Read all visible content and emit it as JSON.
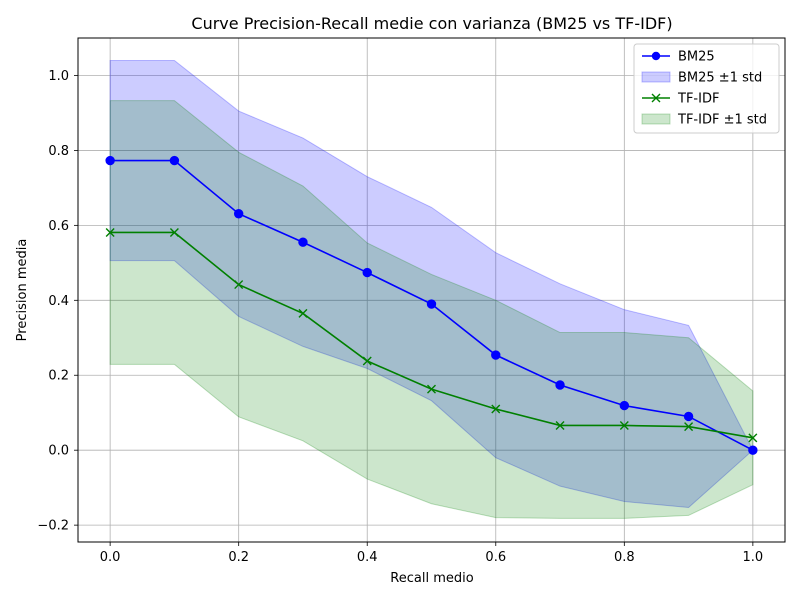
{
  "chart_data": {
    "type": "line",
    "title": "Curve Precision-Recall medie con varianza (BM25 vs TF-IDF)",
    "xlabel": "Recall medio",
    "ylabel": "Precision media",
    "xlim": [
      -0.05,
      1.05
    ],
    "ylim": [
      -0.245,
      1.1
    ],
    "xticks": [
      0.0,
      0.2,
      0.4,
      0.6,
      0.8,
      1.0
    ],
    "xtick_labels": [
      "0.0",
      "0.2",
      "0.4",
      "0.6",
      "0.8",
      "1.0"
    ],
    "yticks": [
      -0.2,
      0.0,
      0.2,
      0.4,
      0.6,
      0.8,
      1.0
    ],
    "ytick_labels": [
      "−0.2",
      "0.0",
      "0.2",
      "0.4",
      "0.6",
      "0.8",
      "1.0"
    ],
    "grid": true,
    "legend_position": "top-right",
    "x": [
      0.0,
      0.1,
      0.2,
      0.3,
      0.4,
      0.5,
      0.6,
      0.7,
      0.8,
      0.9,
      1.0
    ],
    "series": [
      {
        "name": "BM25",
        "color": "#0000ff",
        "marker": "circle",
        "values": [
          0.773,
          0.773,
          0.631,
          0.555,
          0.474,
          0.39,
          0.254,
          0.174,
          0.119,
          0.09,
          0.0
        ],
        "band_upper": [
          1.04,
          1.04,
          0.905,
          0.833,
          0.73,
          0.648,
          0.527,
          0.444,
          0.375,
          0.333,
          0.0
        ],
        "band_lower": [
          0.506,
          0.506,
          0.357,
          0.277,
          0.218,
          0.132,
          -0.02,
          -0.096,
          -0.137,
          -0.153,
          0.0
        ]
      },
      {
        "name": "TF-IDF",
        "color": "#008000",
        "marker": "x",
        "values": [
          0.581,
          0.581,
          0.442,
          0.365,
          0.238,
          0.163,
          0.11,
          0.066,
          0.066,
          0.063,
          0.033
        ],
        "band_upper": [
          0.933,
          0.933,
          0.795,
          0.705,
          0.553,
          0.469,
          0.4,
          0.314,
          0.314,
          0.3,
          0.158
        ],
        "band_lower": [
          0.229,
          0.229,
          0.089,
          0.025,
          -0.077,
          -0.143,
          -0.18,
          -0.182,
          -0.182,
          -0.174,
          -0.092
        ]
      }
    ],
    "legend": [
      {
        "label": "BM25",
        "kind": "line",
        "series": 0
      },
      {
        "label": "BM25 ±1 std",
        "kind": "band",
        "series": 0
      },
      {
        "label": "TF-IDF",
        "kind": "line",
        "series": 1
      },
      {
        "label": "TF-IDF ±1 std",
        "kind": "band",
        "series": 1
      }
    ]
  }
}
